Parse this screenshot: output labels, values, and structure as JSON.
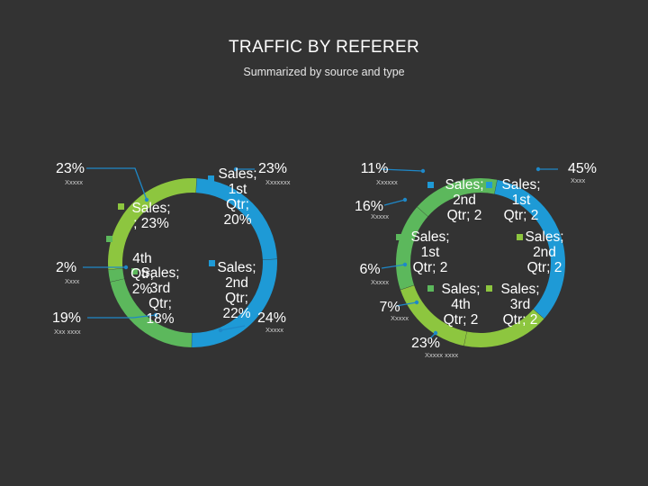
{
  "header": {
    "title": "TRAFFIC BY REFERER",
    "subtitle": "Summarized by source and type"
  },
  "colors": {
    "background": "#333333",
    "blue": "#1e9ad6",
    "green": "#5cb85c",
    "light_green": "#8dc63f",
    "leader_blue": "#1e88c8"
  },
  "chart_data": [
    {
      "type": "pie",
      "style": "doughnut",
      "slices": [
        {
          "label": "Sales; 1st Qtr; 20%",
          "value": 20,
          "color": "#1e9ad6"
        },
        {
          "label": "Sales; 2nd Qtr; 22%",
          "value": 22,
          "color": "#1e9ad6"
        },
        {
          "label": "Sales; 3rd Qtr; 18%",
          "value": 18,
          "color": "#5cb85c"
        },
        {
          "label": "Sales; 4th Qtr; 2%",
          "value": 2,
          "color": "#5cb85c"
        },
        {
          "label": "Sales; ; 23%",
          "value": 23,
          "color": "#8dc63f"
        }
      ],
      "callouts": [
        {
          "percent": "23%",
          "sub": "Xxxxx",
          "side": "left"
        },
        {
          "percent": "2%",
          "sub": "Xxxx",
          "side": "left"
        },
        {
          "percent": "19%",
          "sub": "Xxx xxxx",
          "side": "left"
        },
        {
          "percent": "23%",
          "sub": "Xxxxxxx",
          "side": "right"
        },
        {
          "percent": "24%",
          "sub": "Xxxxx",
          "side": "right"
        }
      ]
    },
    {
      "type": "pie",
      "style": "doughnut",
      "slices": [
        {
          "label": "Sales; 1st Qtr; 2",
          "value": 2,
          "color": "#1e9ad6"
        },
        {
          "label": "Sales; 2nd Qtr; 2",
          "value": 2,
          "color": "#1e9ad6"
        },
        {
          "label": "Sales; 3rd Qtr; 2",
          "value": 2,
          "color": "#8dc63f"
        },
        {
          "label": "Sales; 4th Qtr; 2",
          "value": 2,
          "color": "#8dc63f"
        },
        {
          "label": "Sales; 1st Qtr; 2",
          "value": 2,
          "color": "#5cb85c"
        },
        {
          "label": "Sales; 2nd Qtr; 2",
          "value": 2,
          "color": "#5cb85c"
        }
      ],
      "callouts": [
        {
          "percent": "11%",
          "sub": "Xxxxxx",
          "side": "left"
        },
        {
          "percent": "16%",
          "sub": "Xxxxx",
          "side": "left"
        },
        {
          "percent": "6%",
          "sub": "Xxxxx",
          "side": "left"
        },
        {
          "percent": "7%",
          "sub": "Xxxxx",
          "side": "left"
        },
        {
          "percent": "23%",
          "sub": "Xxxxx xxxx",
          "side": "left"
        },
        {
          "percent": "45%",
          "sub": "Xxxx",
          "side": "right"
        }
      ]
    }
  ]
}
